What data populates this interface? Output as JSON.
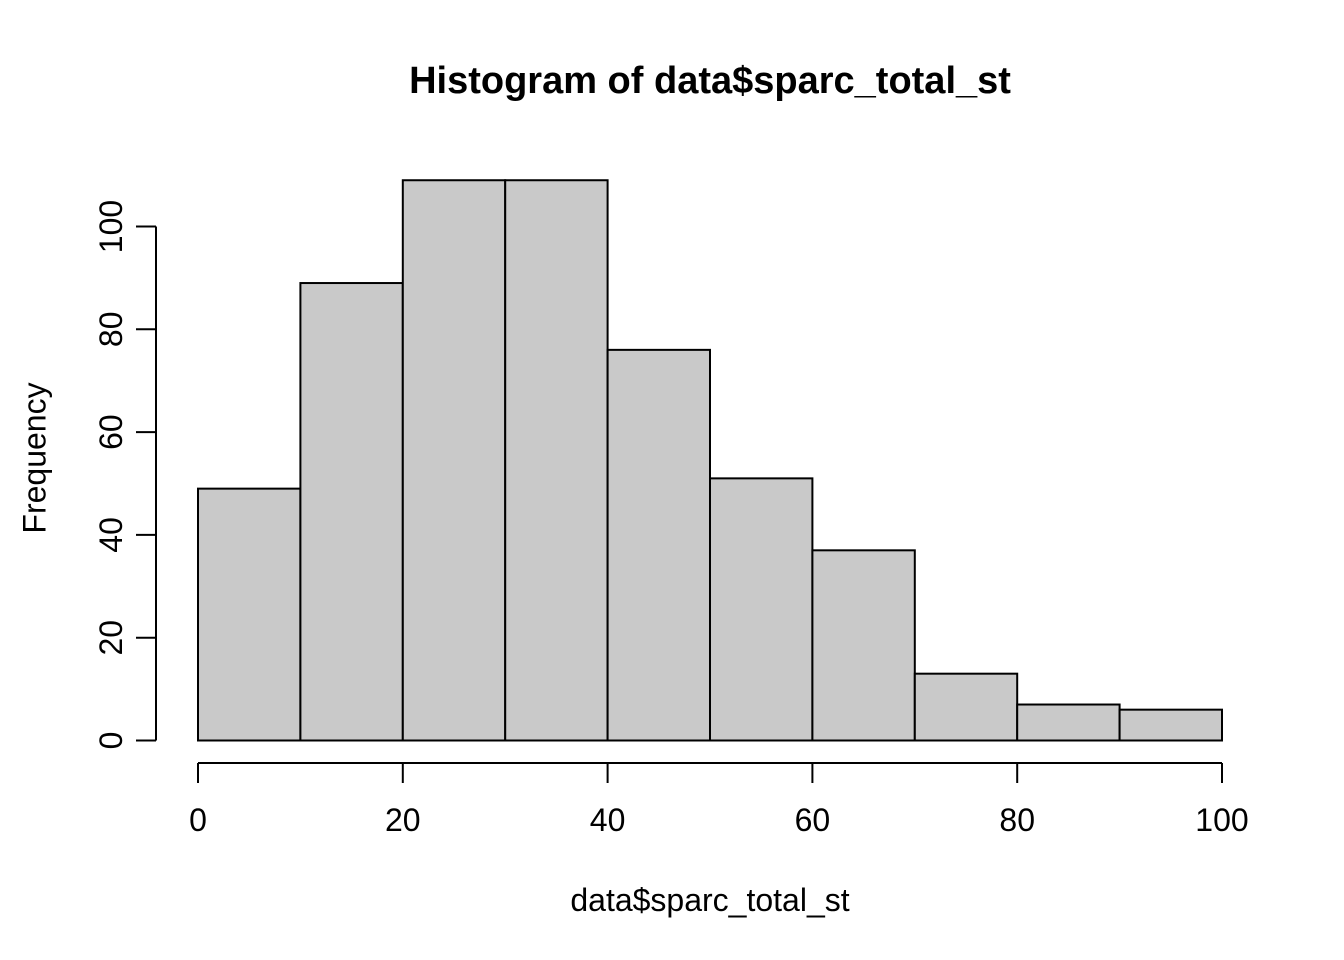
{
  "chart_data": {
    "type": "bar",
    "subtype": "histogram",
    "title": "Histogram of data$sparc_total_st",
    "xlabel": "data$sparc_total_st",
    "ylabel": "Frequency",
    "bin_width": 10,
    "bin_edges": [
      0,
      10,
      20,
      30,
      40,
      50,
      60,
      70,
      80,
      90,
      100
    ],
    "categories": [
      "0-10",
      "10-20",
      "20-30",
      "30-40",
      "40-50",
      "50-60",
      "60-70",
      "70-80",
      "80-90",
      "90-100"
    ],
    "values": [
      49,
      89,
      109,
      109,
      76,
      51,
      37,
      13,
      7,
      6
    ],
    "x_ticks": [
      0,
      20,
      40,
      60,
      80,
      100
    ],
    "y_ticks": [
      0,
      20,
      40,
      60,
      80,
      100
    ],
    "xlim": [
      0,
      100
    ],
    "ylim": [
      0,
      109
    ],
    "grid": false,
    "legend": null,
    "colors": {
      "bar_fill": "#C9C9C9",
      "bar_stroke": "#000000",
      "axis": "#000000",
      "text": "#000000",
      "background": "#FFFFFF"
    }
  }
}
